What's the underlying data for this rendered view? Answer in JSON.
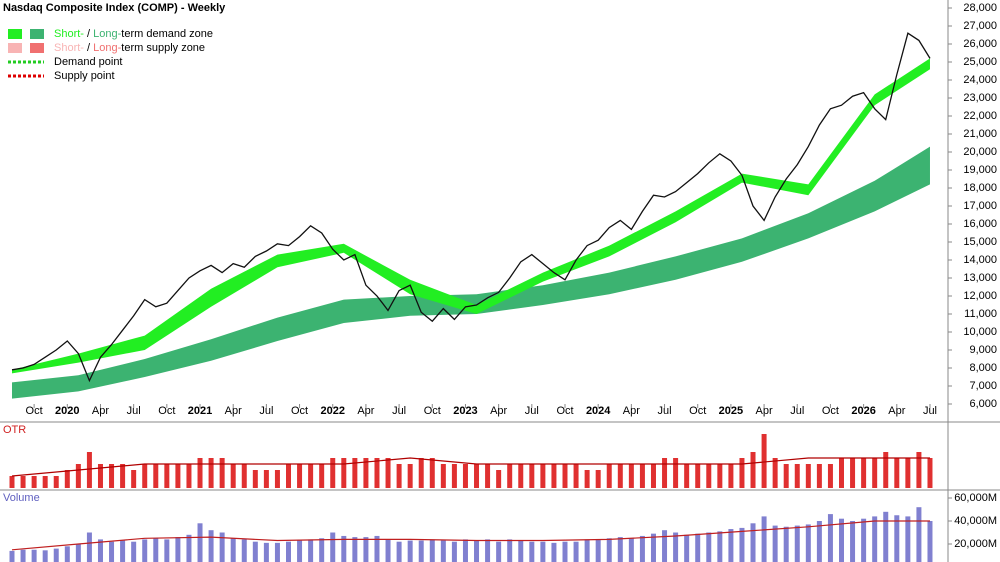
{
  "chart_data": {
    "type": "line",
    "title": "Nasdaq Composite Index (COMP) - Weekly",
    "legend": [
      {
        "parts": [
          "Short-",
          " / ",
          "Long-",
          "term demand zone"
        ],
        "colors": [
          "#22ee22",
          "#3cb371"
        ]
      },
      {
        "parts": [
          "Short-",
          " / ",
          "Long-",
          "term supply zone"
        ],
        "colors": [
          "#f8b4b4",
          "#f07070"
        ]
      },
      {
        "label": "Demand point",
        "color": "#22cc22"
      },
      {
        "label": "Supply point",
        "color": "#dd0000"
      }
    ],
    "categories": [
      "2019-08",
      "2019-09",
      "2019-10",
      "2019-11",
      "2019-12",
      "2020-01",
      "2020-02",
      "2020-03",
      "2020-04",
      "2020-05",
      "2020-06",
      "2020-07",
      "2020-08",
      "2020-09",
      "2020-10",
      "2020-11",
      "2020-12",
      "2021-01",
      "2021-02",
      "2021-03",
      "2021-04",
      "2021-05",
      "2021-06",
      "2021-07",
      "2021-08",
      "2021-09",
      "2021-10",
      "2021-11",
      "2021-12",
      "2022-01",
      "2022-02",
      "2022-03",
      "2022-04",
      "2022-05",
      "2022-06",
      "2022-07",
      "2022-08",
      "2022-09",
      "2022-10",
      "2022-11",
      "2022-12",
      "2023-01",
      "2023-02",
      "2023-03",
      "2023-04",
      "2023-05",
      "2023-06",
      "2023-07",
      "2023-08",
      "2023-09",
      "2023-10",
      "2023-11",
      "2023-12",
      "2024-01",
      "2024-02",
      "2024-03",
      "2024-04",
      "2024-05",
      "2024-06",
      "2024-07",
      "2024-08",
      "2024-09",
      "2024-10",
      "2024-11",
      "2024-12",
      "2025-01",
      "2025-02",
      "2025-03",
      "2025-04",
      "2025-05",
      "2025-06",
      "2025-07",
      "2025-08",
      "2025-09",
      "2025-10",
      "2025-11",
      "2025-12",
      "2026-01",
      "2026-02",
      "2026-03",
      "2026-04",
      "2026-05",
      "2026-06",
      "2026-07"
    ],
    "series": [
      {
        "name": "COMP",
        "color": "#111111",
        "values": [
          7900,
          8000,
          8200,
          8600,
          9000,
          9500,
          8800,
          7300,
          8600,
          9300,
          10100,
          10900,
          11800,
          11400,
          11600,
          12300,
          13000,
          13400,
          13700,
          13300,
          13800,
          13600,
          14200,
          14500,
          14900,
          14800,
          15300,
          15900,
          15500,
          14600,
          14000,
          14300,
          12600,
          12000,
          11200,
          12300,
          12600,
          11100,
          10600,
          11300,
          10700,
          11400,
          11500,
          11900,
          12200,
          13000,
          13900,
          14300,
          13800,
          13300,
          12900,
          14000,
          14800,
          15100,
          15800,
          16200,
          15700,
          16700,
          17600,
          17500,
          17800,
          18300,
          18800,
          19400,
          19900,
          19500,
          18700,
          17000,
          16200,
          17500,
          18500,
          19300,
          20300,
          21500,
          22400,
          22600,
          23100,
          23300,
          22400,
          21800,
          24300,
          26600,
          26200,
          25200
        ]
      }
    ],
    "zone_x": [
      "2019-08",
      "2020-02",
      "2020-08",
      "2021-02",
      "2021-08",
      "2022-02",
      "2022-08",
      "2023-02",
      "2023-08",
      "2024-02",
      "2024-08",
      "2025-02",
      "2025-08",
      "2026-02",
      "2026-07"
    ],
    "zones": [
      {
        "color": "#3cb371",
        "upper": [
          7200,
          7600,
          8500,
          9600,
          10800,
          11800,
          12000,
          12100,
          12600,
          13300,
          14200,
          15200,
          16600,
          18400,
          20300
        ],
        "lower": [
          6300,
          6700,
          7500,
          8400,
          9500,
          10500,
          10900,
          11000,
          11500,
          12100,
          12900,
          13900,
          15200,
          16700,
          18200
        ]
      },
      {
        "color": "#22ee22",
        "upper": [
          7900,
          8800,
          9800,
          12400,
          14300,
          14900,
          12900,
          11500,
          13300,
          14800,
          16700,
          18800,
          18200,
          23200,
          25200
        ],
        "lower": [
          7700,
          8300,
          9000,
          11400,
          13600,
          14400,
          12100,
          11000,
          12800,
          14200,
          16100,
          18300,
          17600,
          22600,
          24600
        ]
      }
    ],
    "ylim": [
      6000,
      28000
    ],
    "yticks": [
      {
        "value": 6000,
        "label": "6,000"
      },
      {
        "value": 7000,
        "label": "7,000"
      },
      {
        "value": 8000,
        "label": "8,000"
      },
      {
        "value": 9000,
        "label": "9,000"
      },
      {
        "value": 10000,
        "label": "10,000"
      },
      {
        "value": 11000,
        "label": "11,000"
      },
      {
        "value": 12000,
        "label": "12,000"
      },
      {
        "value": 13000,
        "label": "13,000"
      },
      {
        "value": 14000,
        "label": "14,000"
      },
      {
        "value": 15000,
        "label": "15,000"
      },
      {
        "value": 16000,
        "label": "16,000"
      },
      {
        "value": 17000,
        "label": "17,000"
      },
      {
        "value": 18000,
        "label": "18,000"
      },
      {
        "value": 19000,
        "label": "19,000"
      },
      {
        "value": 20000,
        "label": "20,000"
      },
      {
        "value": 21000,
        "label": "21,000"
      },
      {
        "value": 22000,
        "label": "22,000"
      },
      {
        "value": 23000,
        "label": "23,000"
      },
      {
        "value": 24000,
        "label": "24,000"
      },
      {
        "value": 25000,
        "label": "25,000"
      },
      {
        "value": 26000,
        "label": "26,000"
      },
      {
        "value": 27000,
        "label": "27,000"
      },
      {
        "value": 28000,
        "label": "28,000"
      }
    ],
    "xticks": [
      {
        "value": "2019-10",
        "label": "Oct"
      },
      {
        "value": "2020-01",
        "label": "2020"
      },
      {
        "value": "2020-04",
        "label": "Apr"
      },
      {
        "value": "2020-07",
        "label": "Jul"
      },
      {
        "value": "2020-10",
        "label": "Oct"
      },
      {
        "value": "2021-01",
        "label": "2021"
      },
      {
        "value": "2021-04",
        "label": "Apr"
      },
      {
        "value": "2021-07",
        "label": "Jul"
      },
      {
        "value": "2021-10",
        "label": "Oct"
      },
      {
        "value": "2022-01",
        "label": "2022"
      },
      {
        "value": "2022-04",
        "label": "Apr"
      },
      {
        "value": "2022-07",
        "label": "Jul"
      },
      {
        "value": "2022-10",
        "label": "Oct"
      },
      {
        "value": "2023-01",
        "label": "2023"
      },
      {
        "value": "2023-04",
        "label": "Apr"
      },
      {
        "value": "2023-07",
        "label": "Jul"
      },
      {
        "value": "2023-10",
        "label": "Oct"
      },
      {
        "value": "2024-01",
        "label": "2024"
      },
      {
        "value": "2024-04",
        "label": "Apr"
      },
      {
        "value": "2024-07",
        "label": "Jul"
      },
      {
        "value": "2024-10",
        "label": "Oct"
      },
      {
        "value": "2025-01",
        "label": "2025"
      },
      {
        "value": "2025-04",
        "label": "Apr"
      },
      {
        "value": "2025-07",
        "label": "Jul"
      },
      {
        "value": "2025-10",
        "label": "Oct"
      },
      {
        "value": "2026-01",
        "label": "2026"
      },
      {
        "value": "2026-04",
        "label": "Apr"
      },
      {
        "value": "2026-07",
        "label": "Jul"
      }
    ],
    "otr": {
      "title": "OTR",
      "color": "#e03030",
      "ylim": [
        0,
        10
      ],
      "values": [
        2,
        2,
        2,
        2,
        2,
        3,
        4,
        6,
        4,
        4,
        4,
        3,
        4,
        4,
        4,
        4,
        4,
        5,
        5,
        5,
        4,
        4,
        3,
        3,
        3,
        4,
        4,
        4,
        4,
        5,
        5,
        5,
        5,
        5,
        5,
        4,
        4,
        5,
        5,
        4,
        4,
        4,
        4,
        4,
        3,
        4,
        4,
        4,
        4,
        4,
        4,
        4,
        3,
        3,
        4,
        4,
        4,
        4,
        4,
        5,
        5,
        4,
        4,
        4,
        4,
        4,
        5,
        6,
        9,
        5,
        4,
        4,
        4,
        4,
        4,
        5,
        5,
        5,
        5,
        6,
        5,
        5,
        6,
        5
      ],
      "average": [
        2,
        3,
        4,
        4,
        4,
        4,
        5,
        4,
        4,
        4,
        4,
        4,
        5,
        5,
        5
      ]
    },
    "volume": {
      "title": "Volume",
      "color": "#8080d0",
      "ylim": [
        0,
        65000
      ],
      "yticks": [
        {
          "value": 20000,
          "label": "20,000M"
        },
        {
          "value": 40000,
          "label": "40,000M"
        },
        {
          "value": 60000,
          "label": "60,000M"
        }
      ],
      "values": [
        14000,
        15000,
        15000,
        14500,
        16000,
        18000,
        20000,
        30000,
        24000,
        22000,
        23000,
        22000,
        24000,
        25000,
        24000,
        26000,
        28000,
        38000,
        32000,
        30000,
        25000,
        24000,
        22000,
        21000,
        21000,
        22000,
        23000,
        24000,
        25000,
        30000,
        27000,
        26000,
        26000,
        27000,
        24000,
        22000,
        23000,
        23000,
        24000,
        23000,
        22000,
        24000,
        23000,
        24000,
        22000,
        24000,
        23000,
        22000,
        22000,
        21000,
        22000,
        22000,
        24000,
        24000,
        25000,
        26000,
        25000,
        27000,
        29000,
        32000,
        30000,
        28000,
        29000,
        30000,
        31000,
        33000,
        34000,
        38000,
        44000,
        36000,
        35000,
        36000,
        37000,
        40000,
        46000,
        42000,
        40000,
        42000,
        44000,
        48000,
        45000,
        44000,
        52000,
        40000
      ],
      "average": [
        15000,
        20000,
        25000,
        26000,
        23000,
        24000,
        24000,
        23000,
        23000,
        24000,
        27000,
        31000,
        35000,
        40000,
        40000
      ]
    }
  }
}
